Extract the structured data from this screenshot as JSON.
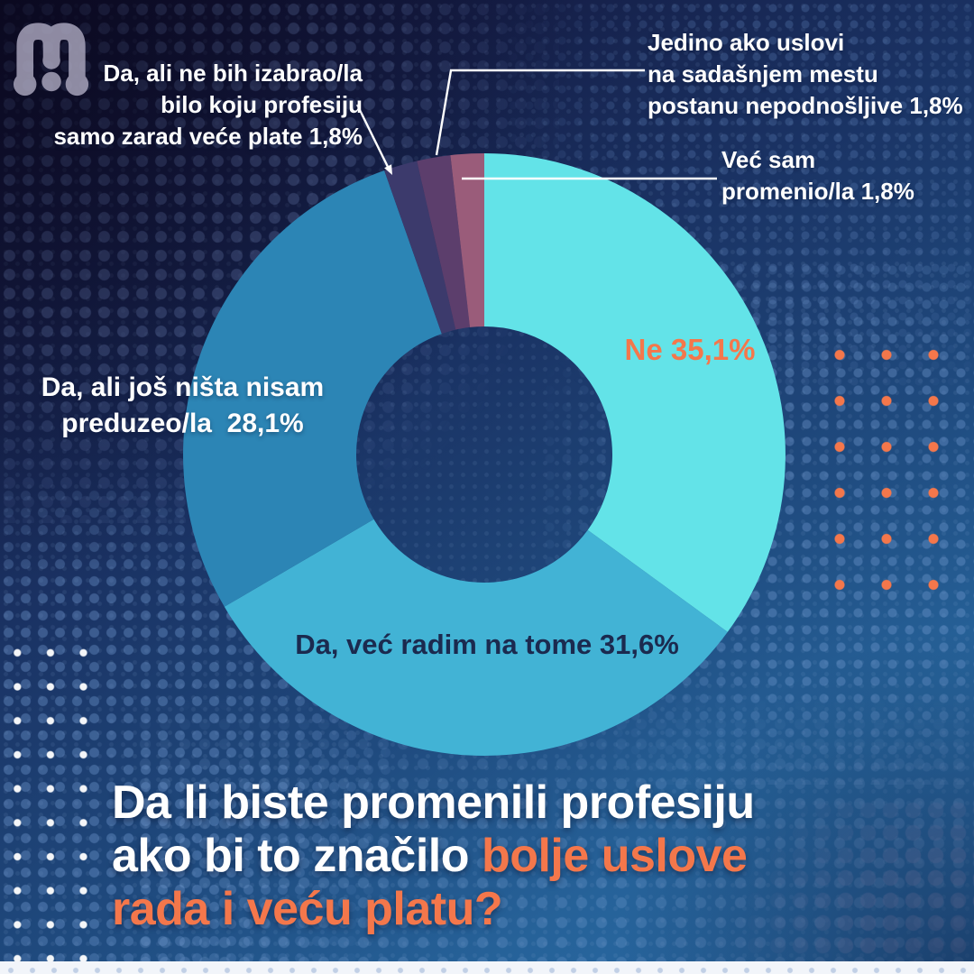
{
  "logo": {
    "alt": "m-dots-logo"
  },
  "chart_data": {
    "type": "donut",
    "title": "Da li biste promenili profesiju ako bi to značilo bolje uslove rada i veću platu?",
    "unit": "%",
    "direction": "clockwise",
    "start_angle_deg": 0,
    "legend_position": "callout-labels",
    "series": [
      {
        "label": "Ne",
        "value": 35.1,
        "color": "#63E3E8"
      },
      {
        "label": "Da, već radim na tome",
        "value": 31.6,
        "color": "#42B3D5"
      },
      {
        "label": "Da, ali još ništa nisam preduzeo/la",
        "value": 28.1,
        "color": "#2C85B5"
      },
      {
        "label": "Da, ali ne bih izabrao/la bilo koju profesiju samo zarad veće plate",
        "value": 1.8,
        "color": "#3C3A6C"
      },
      {
        "label": "Jedino ako uslovi na sadašnjem mestu postanu nepodnošljive",
        "value": 1.8,
        "color": "#5C3E6C"
      },
      {
        "label": "Već sam promenio/la",
        "value": 1.8,
        "color": "#9A5C7A"
      }
    ]
  },
  "callouts": [
    {
      "id": "ne-bih-izabrao",
      "lines": [
        "Da, ali ne bih izabrao/la",
        "bilo koju profesiju",
        "samo zarad veće plate 1,8%"
      ]
    },
    {
      "id": "jedino-ako-uslovi",
      "lines": [
        "Jedino ako uslovi",
        "na sadašnjem mestu",
        "postanu nepodnošljive 1,8%"
      ]
    },
    {
      "id": "vec-sam-promenio",
      "lines": [
        "Već sam",
        "promenio/la 1,8%"
      ]
    },
    {
      "id": "ne",
      "lines": [
        "Ne 35,1%"
      ]
    },
    {
      "id": "jos-nista",
      "lines": [
        "Da, ali još ništa nisam",
        "preduzeo/la  28,1%"
      ]
    },
    {
      "id": "da-vec-radim",
      "lines": [
        "Da, već radim na tome 31,6%"
      ]
    }
  ],
  "question": {
    "white1": "Da li biste promenili profesiju",
    "white2": "ako bi to značilo ",
    "orange2": "bolje uslove",
    "orange3": "rada i veću platu?"
  },
  "colors": {
    "accent_orange": "#F4774B",
    "dark_label": "#1B2A4F",
    "leader_line": "#FFFFFF",
    "background_top": "#100F2D",
    "background_bottom": "#2B6BA6"
  }
}
